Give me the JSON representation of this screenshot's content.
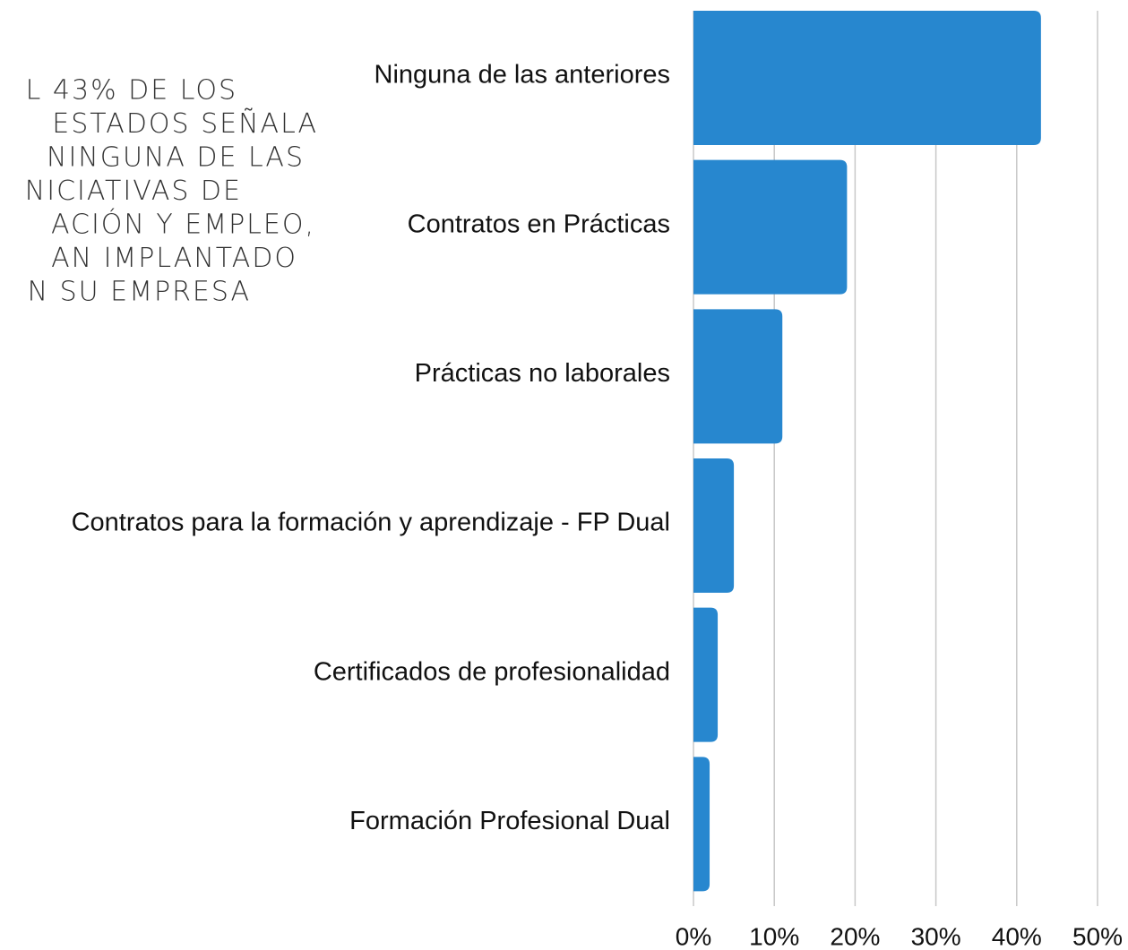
{
  "chart_data": {
    "type": "barh",
    "annotation": [
      "L 43% DE LOS",
      "ESTADOS SEÑALA",
      "NINGUNA DE LAS",
      "NICIATIVAS DE",
      "ACIÓN Y EMPLEO,",
      "AN IMPLANTADO",
      "N SU EMPRESA"
    ],
    "categories": [
      "Ninguna de las anteriores",
      "Contratos en Prácticas",
      "Prácticas no laborales",
      "Contratos para la formación y aprendizaje - FP Dual",
      "Certificados de profesionalidad",
      "Formación Profesional Dual"
    ],
    "values": [
      43,
      19,
      11,
      5,
      3,
      2
    ],
    "color": "#2787cf",
    "xlim": [
      0,
      50
    ],
    "xticks": [
      {
        "value": 0,
        "label": "0%"
      },
      {
        "value": 10,
        "label": "10%"
      },
      {
        "value": 20,
        "label": "20%"
      },
      {
        "value": 30,
        "label": "30%"
      },
      {
        "value": 40,
        "label": "40%"
      },
      {
        "value": 50,
        "label": "50%"
      }
    ],
    "grid": true
  }
}
